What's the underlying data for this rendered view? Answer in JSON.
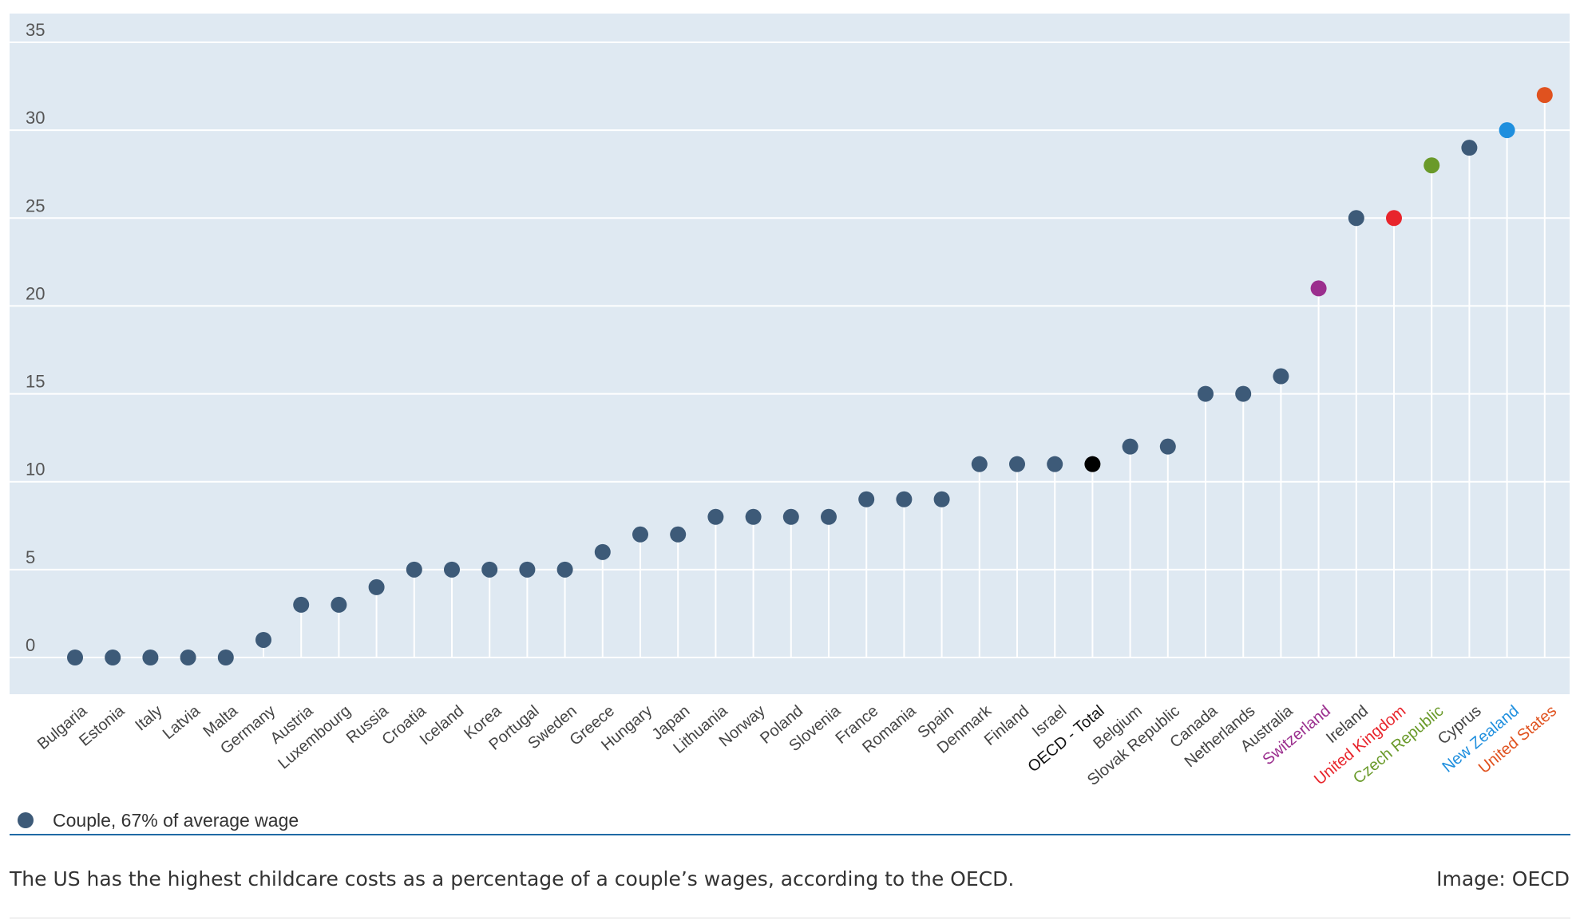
{
  "chart_data": {
    "type": "scatter",
    "subtype": "lollipop",
    "categories": [
      "Bulgaria",
      "Estonia",
      "Italy",
      "Latvia",
      "Malta",
      "Germany",
      "Austria",
      "Luxembourg",
      "Russia",
      "Croatia",
      "Iceland",
      "Korea",
      "Portugal",
      "Sweden",
      "Greece",
      "Hungary",
      "Japan",
      "Lithuania",
      "Norway",
      "Poland",
      "Slovenia",
      "France",
      "Romania",
      "Spain",
      "Denmark",
      "Finland",
      "Israel",
      "OECD - Total",
      "Belgium",
      "Slovak Republic",
      "Canada",
      "Netherlands",
      "Australia",
      "Switzerland",
      "Ireland",
      "United Kingdom",
      "Czech Republic",
      "Cyprus",
      "New Zealand",
      "United States"
    ],
    "series": [
      {
        "name": "Couple, 67% of average wage",
        "values": [
          0,
          0,
          0,
          0,
          0,
          1,
          3,
          3,
          4,
          5,
          5,
          5,
          5,
          5,
          6,
          7,
          7,
          8,
          8,
          8,
          8,
          9,
          9,
          9,
          11,
          11,
          11,
          11,
          12,
          12,
          15,
          15,
          16,
          21,
          25,
          25,
          28,
          29,
          30,
          32
        ]
      }
    ],
    "point_colors": [
      "#3d5a78",
      "#3d5a78",
      "#3d5a78",
      "#3d5a78",
      "#3d5a78",
      "#3d5a78",
      "#3d5a78",
      "#3d5a78",
      "#3d5a78",
      "#3d5a78",
      "#3d5a78",
      "#3d5a78",
      "#3d5a78",
      "#3d5a78",
      "#3d5a78",
      "#3d5a78",
      "#3d5a78",
      "#3d5a78",
      "#3d5a78",
      "#3d5a78",
      "#3d5a78",
      "#3d5a78",
      "#3d5a78",
      "#3d5a78",
      "#3d5a78",
      "#3d5a78",
      "#3d5a78",
      "#000000",
      "#3d5a78",
      "#3d5a78",
      "#3d5a78",
      "#3d5a78",
      "#3d5a78",
      "#9b2f8e",
      "#3d5a78",
      "#e8252c",
      "#6a9a2a",
      "#3d5a78",
      "#1f8fde",
      "#e0521f"
    ],
    "label_colors": [
      "#444444",
      "#444444",
      "#444444",
      "#444444",
      "#444444",
      "#444444",
      "#444444",
      "#444444",
      "#444444",
      "#444444",
      "#444444",
      "#444444",
      "#444444",
      "#444444",
      "#444444",
      "#444444",
      "#444444",
      "#444444",
      "#444444",
      "#444444",
      "#444444",
      "#444444",
      "#444444",
      "#444444",
      "#444444",
      "#444444",
      "#444444",
      "#111111",
      "#444444",
      "#444444",
      "#444444",
      "#444444",
      "#444444",
      "#9b2f8e",
      "#444444",
      "#e8252c",
      "#6a9a2a",
      "#444444",
      "#1f8fde",
      "#e0521f"
    ],
    "yticks": [
      "0",
      "5",
      "10",
      "15",
      "20",
      "25",
      "30",
      "35"
    ],
    "ylim": [
      -1,
      35
    ],
    "grid": true,
    "legend_position": "bottom-left",
    "title": "",
    "xlabel": "",
    "ylabel": ""
  },
  "colors": {
    "plot_background": "#dfe9f2",
    "grid": "#ffffff",
    "default_point": "#3d5a78",
    "rule": "#1f6aa5"
  },
  "legend": {
    "label": "Couple, 67% of average wage"
  },
  "caption": "The US has the highest childcare costs as a percentage of a couple’s wages, according to the OECD.",
  "credit": "Image: OECD"
}
